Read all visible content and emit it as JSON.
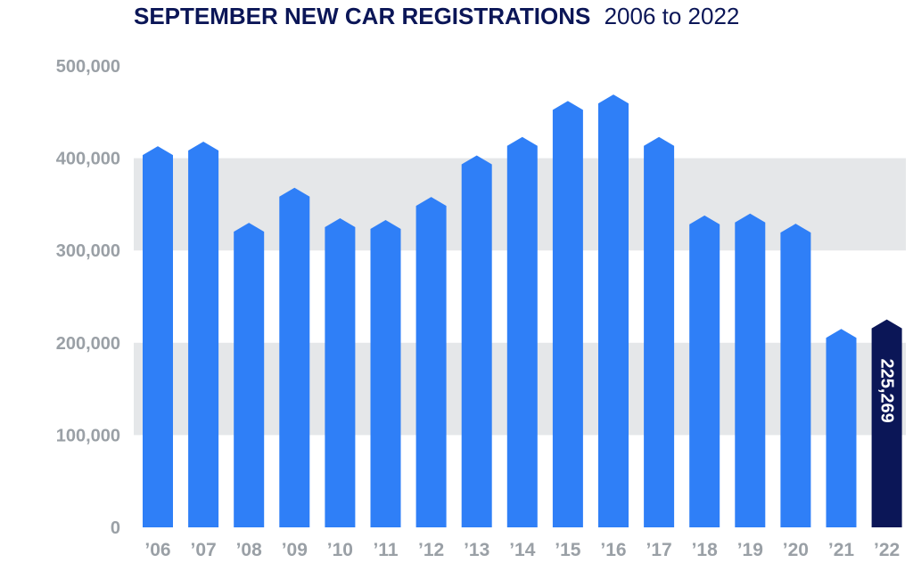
{
  "title": {
    "bold": "SEPTEMBER NEW CAR REGISTRATIONS",
    "rest": "2006 to 2022"
  },
  "colors": {
    "bar": "#2f7ff7",
    "highlight_bar": "#0b1657",
    "band": "#e5e7e9",
    "axis_text": "#9aa0a6",
    "title": "#0b1657",
    "label_text": "#ffffff"
  },
  "chart_data": {
    "type": "bar",
    "title": "SEPTEMBER NEW CAR REGISTRATIONS 2006 to 2022",
    "xlabel": "",
    "ylabel": "",
    "ylim": [
      0,
      500000
    ],
    "yticks": [
      0,
      100000,
      200000,
      300000,
      400000,
      500000
    ],
    "ytick_labels": [
      "0",
      "100,000",
      "200,000",
      "300,000",
      "400,000",
      "500,000"
    ],
    "categories": [
      "’06",
      "’07",
      "’08",
      "’09",
      "’10",
      "’11",
      "’12",
      "’13",
      "’14",
      "’15",
      "’16",
      "’17",
      "’18",
      "’19",
      "’20",
      "’21",
      "’22"
    ],
    "values": [
      413000,
      418000,
      330000,
      368000,
      335000,
      333000,
      358000,
      403000,
      423000,
      462000,
      469000,
      423000,
      338000,
      340000,
      329000,
      215000,
      225269
    ],
    "highlight_index": 16,
    "data_labels": [
      {
        "index": 16,
        "text": "225,269"
      }
    ],
    "grid": "shaded bands 100,000–200,000 and 300,000–400,000",
    "legend": "none"
  }
}
